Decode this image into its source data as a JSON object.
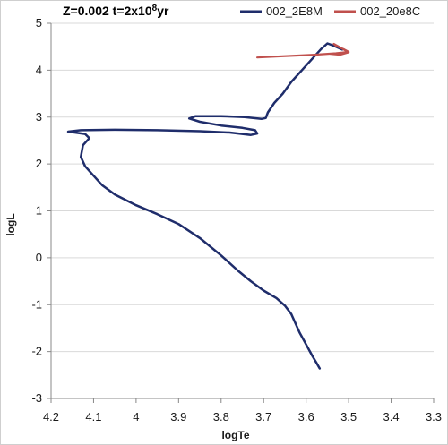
{
  "chart_data": {
    "type": "line",
    "title": "Z=0.002 t=2x10",
    "title_exponent": "8",
    "title_suffix": "yr",
    "xlabel": "logTe",
    "ylabel": "logL",
    "xlim": [
      4.2,
      3.3
    ],
    "ylim": [
      -3,
      5
    ],
    "x_reversed": true,
    "x_ticks": [
      "4.2",
      "4.1",
      "4",
      "3.9",
      "3.8",
      "3.7",
      "3.6",
      "3.5",
      "3.4",
      "3.3"
    ],
    "y_ticks": [
      "-3",
      "-2",
      "-1",
      "0",
      "1",
      "2",
      "3",
      "4",
      "5"
    ],
    "grid": "horizontal",
    "legend_position": "top-right",
    "series": [
      {
        "name": "002_2E8M",
        "color": "#1f2d6b",
        "points": [
          [
            3.568,
            -2.36
          ],
          [
            3.575,
            -2.25
          ],
          [
            3.585,
            -2.1
          ],
          [
            3.6,
            -1.85
          ],
          [
            3.615,
            -1.6
          ],
          [
            3.625,
            -1.4
          ],
          [
            3.635,
            -1.2
          ],
          [
            3.65,
            -1.02
          ],
          [
            3.67,
            -0.86
          ],
          [
            3.7,
            -0.7
          ],
          [
            3.73,
            -0.5
          ],
          [
            3.76,
            -0.28
          ],
          [
            3.8,
            0.05
          ],
          [
            3.85,
            0.42
          ],
          [
            3.9,
            0.72
          ],
          [
            3.95,
            0.93
          ],
          [
            4.0,
            1.12
          ],
          [
            4.05,
            1.35
          ],
          [
            4.08,
            1.55
          ],
          [
            4.1,
            1.75
          ],
          [
            4.12,
            1.95
          ],
          [
            4.13,
            2.15
          ],
          [
            4.125,
            2.4
          ],
          [
            4.11,
            2.55
          ],
          [
            4.12,
            2.64
          ],
          [
            4.16,
            2.69
          ],
          [
            4.13,
            2.72
          ],
          [
            4.05,
            2.73
          ],
          [
            3.95,
            2.72
          ],
          [
            3.85,
            2.7
          ],
          [
            3.78,
            2.67
          ],
          [
            3.73,
            2.62
          ],
          [
            3.715,
            2.65
          ],
          [
            3.72,
            2.72
          ],
          [
            3.75,
            2.77
          ],
          [
            3.8,
            2.82
          ],
          [
            3.85,
            2.9
          ],
          [
            3.875,
            2.97
          ],
          [
            3.86,
            3.02
          ],
          [
            3.8,
            3.02
          ],
          [
            3.745,
            3.0
          ],
          [
            3.705,
            2.96
          ],
          [
            3.695,
            2.98
          ],
          [
            3.69,
            3.1
          ],
          [
            3.675,
            3.3
          ],
          [
            3.655,
            3.5
          ],
          [
            3.635,
            3.75
          ],
          [
            3.61,
            4.0
          ],
          [
            3.585,
            4.25
          ],
          [
            3.565,
            4.45
          ],
          [
            3.55,
            4.57
          ],
          [
            3.535,
            4.52
          ],
          [
            3.515,
            4.44
          ]
        ]
      },
      {
        "name": "002_20e8C",
        "color": "#c0504d",
        "points": [
          [
            3.715,
            4.27
          ],
          [
            3.65,
            4.3
          ],
          [
            3.58,
            4.33
          ],
          [
            3.53,
            4.36
          ],
          [
            3.5,
            4.39
          ],
          [
            3.51,
            4.44
          ],
          [
            3.53,
            4.52
          ],
          [
            3.535,
            4.56
          ],
          [
            3.515,
            4.46
          ],
          [
            3.5,
            4.38
          ],
          [
            3.52,
            4.33
          ],
          [
            3.545,
            4.35
          ]
        ]
      }
    ]
  }
}
